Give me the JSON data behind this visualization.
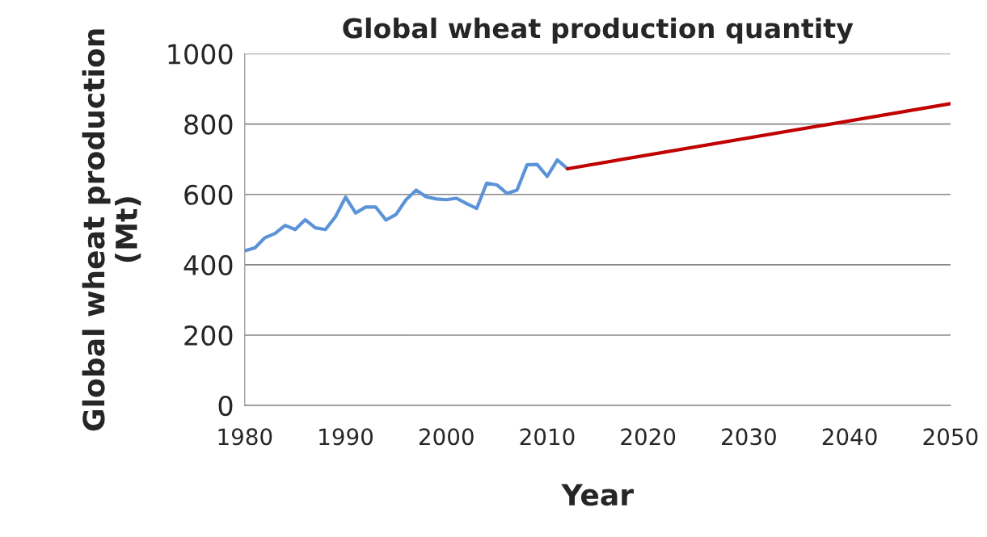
{
  "chart_data": {
    "type": "line",
    "title": "Global wheat production quantity",
    "xlabel": "Year",
    "ylabel": "Global wheat production\n(Mt)",
    "series": [
      {
        "color": "#5b93d8",
        "x": [
          1980,
          1981,
          1982,
          1983,
          1984,
          1985,
          1986,
          1987,
          1988,
          1989,
          1990,
          1991,
          1992,
          1993,
          1994,
          1995,
          1996,
          1997,
          1998,
          1999,
          2000,
          2001,
          2002,
          2003,
          2004,
          2005,
          2006,
          2007,
          2008,
          2009,
          2010,
          2011,
          2012
        ],
        "values": [
          440,
          448,
          477,
          489,
          512,
          500,
          528,
          505,
          500,
          537,
          592,
          547,
          564,
          564,
          527,
          543,
          585,
          612,
          593,
          587,
          585,
          589,
          574,
          560,
          632,
          627,
          603,
          612,
          684,
          685,
          651,
          698,
          673
        ]
      },
      {
        "color": "#c00000",
        "x": [
          2012,
          2050
        ],
        "values": [
          673,
          858
        ]
      }
    ],
    "xlim": [
      1980,
      2050
    ],
    "xticks": [
      1980,
      1990,
      2000,
      2010,
      2020,
      2030,
      2040,
      2050
    ],
    "ylim": [
      0,
      1000
    ],
    "yticks": [
      0,
      200,
      400,
      600,
      800,
      1000
    ],
    "grid": "y",
    "marker": "none",
    "line_style": "solid"
  }
}
